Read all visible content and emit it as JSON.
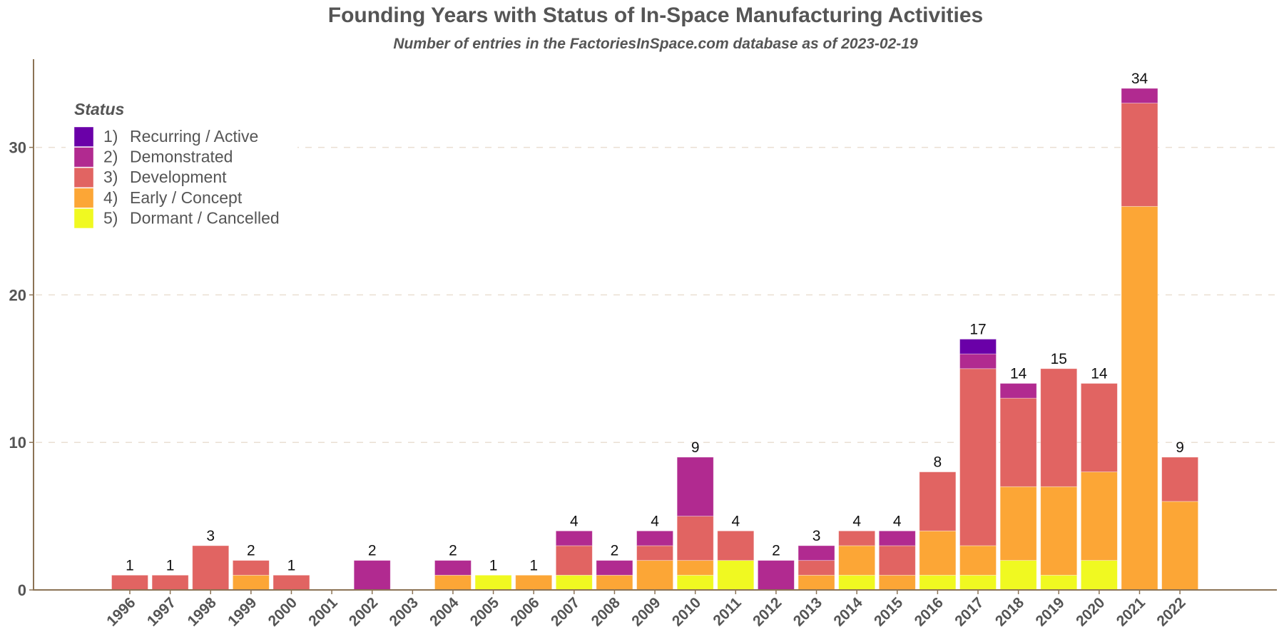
{
  "chart_data": {
    "type": "bar",
    "stacked": true,
    "title": "Founding Years with Status of In-Space Manufacturing Activities",
    "subtitle": "Number of entries in the FactoriesInSpace.com database as of 2023-02-19",
    "xlabel": "",
    "ylabel": "",
    "ylim": [
      0,
      36
    ],
    "yticks": [
      0,
      10,
      20,
      30
    ],
    "grid": "horizontal dashed",
    "legend": {
      "title": "Status",
      "placement": "top-left"
    },
    "categories": [
      "1996",
      "1997",
      "1998",
      "1999",
      "2000",
      "2001",
      "2002",
      "2003",
      "2004",
      "2005",
      "2006",
      "2007",
      "2008",
      "2009",
      "2010",
      "2011",
      "2012",
      "2013",
      "2014",
      "2015",
      "2016",
      "2017",
      "2018",
      "2019",
      "2020",
      "2021",
      "2022"
    ],
    "series": [
      {
        "num": "5)",
        "name": "Dormant / Cancelled",
        "color": "#f0f921",
        "values": [
          0,
          0,
          0,
          0,
          0,
          0,
          0,
          0,
          0,
          1,
          0,
          1,
          0,
          0,
          1,
          2,
          0,
          0,
          1,
          0,
          1,
          1,
          2,
          1,
          2,
          0,
          0
        ]
      },
      {
        "num": "4)",
        "name": "Early / Concept",
        "color": "#fca636",
        "values": [
          0,
          0,
          0,
          1,
          0,
          0,
          0,
          0,
          1,
          0,
          1,
          0,
          1,
          2,
          1,
          0,
          0,
          1,
          2,
          1,
          3,
          2,
          5,
          6,
          6,
          26,
          6
        ]
      },
      {
        "num": "3)",
        "name": "Development",
        "color": "#e16462",
        "values": [
          1,
          1,
          3,
          1,
          1,
          0,
          0,
          0,
          0,
          0,
          0,
          2,
          0,
          1,
          3,
          2,
          0,
          1,
          1,
          2,
          4,
          12,
          6,
          8,
          6,
          7,
          3
        ]
      },
      {
        "num": "2)",
        "name": "Demonstrated",
        "color": "#b12a90",
        "values": [
          0,
          0,
          0,
          0,
          0,
          0,
          2,
          0,
          1,
          0,
          0,
          1,
          1,
          1,
          4,
          0,
          2,
          1,
          0,
          1,
          0,
          1,
          1,
          0,
          0,
          1,
          0
        ]
      },
      {
        "num": "1)",
        "name": "Recurring / Active",
        "color": "#6a00a8",
        "values": [
          0,
          0,
          0,
          0,
          0,
          0,
          0,
          0,
          0,
          0,
          0,
          0,
          0,
          0,
          0,
          0,
          0,
          0,
          0,
          0,
          0,
          1,
          0,
          0,
          0,
          0,
          0
        ]
      }
    ],
    "totals": [
      1,
      1,
      3,
      2,
      1,
      null,
      2,
      null,
      2,
      1,
      1,
      4,
      2,
      4,
      9,
      4,
      2,
      3,
      4,
      4,
      8,
      17,
      14,
      15,
      14,
      34,
      9
    ],
    "legend_order": [
      {
        "num": "1)",
        "name": "Recurring / Active",
        "color": "#6a00a8"
      },
      {
        "num": "2)",
        "name": "Demonstrated",
        "color": "#b12a90"
      },
      {
        "num": "3)",
        "name": "Development",
        "color": "#e16462"
      },
      {
        "num": "4)",
        "name": "Early / Concept",
        "color": "#fca636"
      },
      {
        "num": "5)",
        "name": "Dormant / Cancelled",
        "color": "#f0f921"
      }
    ]
  }
}
